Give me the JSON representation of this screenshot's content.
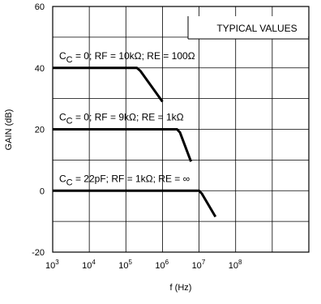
{
  "chart_data": {
    "type": "line",
    "xlabel": "f (Hz)",
    "ylabel": "GAIN (dB)",
    "x_scale": "log",
    "xlim": [
      1000,
      10000000000
    ],
    "ylim": [
      -20,
      60
    ],
    "grid": true,
    "x_ticks": [
      {
        "base": "10",
        "exp": "3",
        "value": 1000
      },
      {
        "base": "10",
        "exp": "4",
        "value": 10000
      },
      {
        "base": "10",
        "exp": "5",
        "value": 100000
      },
      {
        "base": "10",
        "exp": "6",
        "value": 1000000
      },
      {
        "base": "10",
        "exp": "7",
        "value": 10000000
      },
      {
        "base": "10",
        "exp": "8",
        "value": 100000000
      }
    ],
    "y_ticks": [
      {
        "label": "60",
        "value": 60
      },
      {
        "label": "40",
        "value": 40
      },
      {
        "label": "20",
        "value": 20
      },
      {
        "label": "0",
        "value": 0
      },
      {
        "label": "-20",
        "value": -20
      }
    ],
    "legend_box": "TYPICAL VALUES",
    "series": [
      {
        "label_prefix": "C",
        "label_sub": "C",
        "label_rest": " = 0; RF = 10kΩ; RE = 100Ω",
        "points": [
          [
            1000,
            40
          ],
          [
            200000,
            40
          ],
          [
            250000,
            39
          ],
          [
            1000000,
            29
          ]
        ]
      },
      {
        "label_prefix": "C",
        "label_sub": "C",
        "label_rest": " = 0; RF = 9kΩ; RE = 1kΩ",
        "points": [
          [
            1000,
            20
          ],
          [
            2500000,
            20
          ],
          [
            3000000,
            19
          ],
          [
            6000000,
            9.5
          ]
        ]
      },
      {
        "label_prefix": "C",
        "label_sub": "C",
        "label_rest": " = 22pF; RF = 1kΩ; RE = ∞",
        "points": [
          [
            1000,
            0
          ],
          [
            10000000,
            0
          ],
          [
            12000000,
            -1
          ],
          [
            28000000,
            -8.5
          ]
        ]
      }
    ]
  }
}
